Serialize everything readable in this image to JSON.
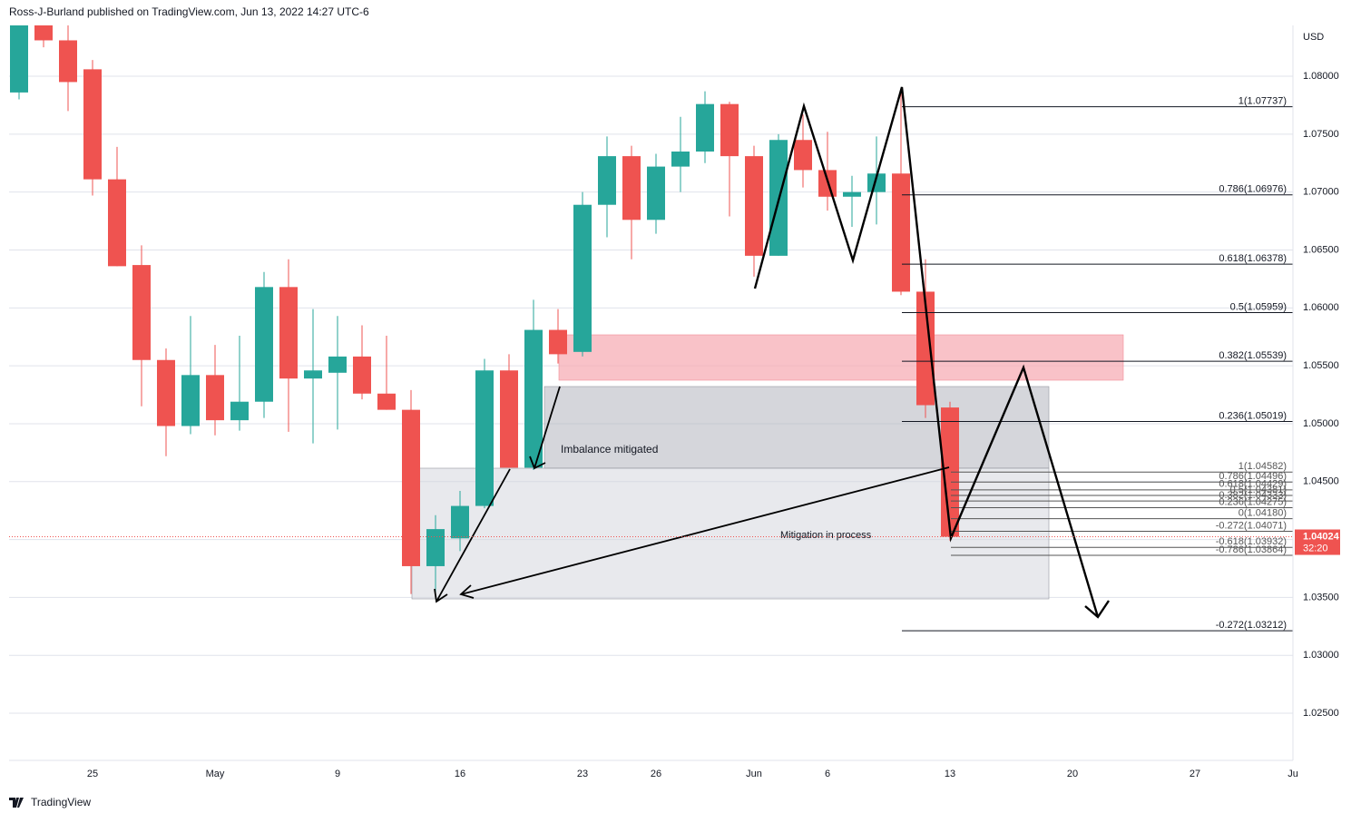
{
  "header": "Ross-J-Burland published on TradingView.com, Jun 13, 2022 14:27 UTC-6",
  "footer": "TradingView",
  "chart_data": {
    "type": "candlestick",
    "currency": "USD",
    "categories": [
      null,
      null,
      null,
      "25",
      null,
      null,
      null,
      null,
      "May",
      null,
      null,
      null,
      null,
      "9",
      null,
      null,
      null,
      null,
      "16",
      null,
      null,
      null,
      null,
      "23",
      null,
      null,
      "26",
      null,
      null,
      null,
      "Jun",
      null,
      null,
      "6",
      null,
      null,
      null,
      null,
      "13",
      null,
      null,
      null,
      null,
      "20",
      null,
      null,
      null,
      null,
      "27",
      null,
      null,
      null,
      "Ju"
    ],
    "open": [
      1.0786,
      1.0845,
      1.0831,
      1.0806,
      1.0711,
      1.0637,
      1.0555,
      1.0498,
      1.0542,
      1.0503,
      1.0519,
      1.0618,
      1.0539,
      1.0544,
      1.0558,
      1.0526,
      1.0512,
      1.0377,
      1.0401,
      1.0429,
      1.0546,
      1.0462,
      1.0581,
      1.0562,
      1.0689,
      1.0731,
      1.0676,
      1.0722,
      1.0735,
      1.0776,
      1.0731,
      1.0645,
      1.0745,
      1.0719,
      1.0696,
      1.07,
      1.0716,
      1.0614,
      1.0514,
      null,
      null,
      null,
      null,
      null,
      null,
      null,
      null,
      null,
      null,
      null,
      null,
      null,
      null
    ],
    "high": [
      1.085,
      1.0853,
      1.0845,
      1.0814,
      1.0739,
      1.0654,
      1.0565,
      1.0593,
      1.0568,
      1.0576,
      1.0631,
      1.0642,
      1.0599,
      1.0593,
      1.0585,
      1.0576,
      1.0529,
      1.0421,
      1.0442,
      1.0556,
      1.056,
      1.0607,
      1.0599,
      1.07,
      1.0748,
      1.074,
      1.0733,
      1.0765,
      1.0787,
      1.0778,
      1.074,
      1.075,
      1.0767,
      1.0752,
      1.0714,
      1.0748,
      1.0787,
      1.0642,
      1.0519,
      null,
      null,
      null,
      null,
      null,
      null,
      null,
      null,
      null,
      null,
      null,
      null,
      null,
      null
    ],
    "low": [
      1.078,
      1.0825,
      1.077,
      1.0697,
      1.0636,
      1.0515,
      1.0472,
      1.0491,
      1.049,
      1.0494,
      1.0505,
      1.0493,
      1.0483,
      1.0495,
      1.0521,
      1.0512,
      1.0353,
      1.0349,
      1.039,
      1.0427,
      1.0462,
      1.046,
      1.0552,
      1.0558,
      1.0661,
      1.0642,
      1.0664,
      1.07,
      1.0725,
      1.0679,
      1.0627,
      1.0645,
      1.0704,
      1.0684,
      1.067,
      1.0672,
      1.0611,
      1.0505,
      1.0399,
      null,
      null,
      null,
      null,
      null,
      null,
      null,
      null,
      null,
      null,
      null,
      null,
      null,
      null
    ],
    "close": [
      1.0845,
      1.0831,
      1.0795,
      1.0711,
      1.0636,
      1.0555,
      1.0498,
      1.0542,
      1.0503,
      1.0519,
      1.0618,
      1.0539,
      1.0546,
      1.0558,
      1.0526,
      1.0512,
      1.0377,
      1.0409,
      1.0429,
      1.0546,
      1.0462,
      1.0581,
      1.056,
      1.0689,
      1.0731,
      1.0676,
      1.0722,
      1.0735,
      1.0776,
      1.0731,
      1.0645,
      1.0745,
      1.0719,
      1.0696,
      1.07,
      1.0716,
      1.0614,
      1.0516,
      1.04024,
      null,
      null,
      null,
      null,
      null,
      null,
      null,
      null,
      null,
      null,
      null,
      null,
      null,
      null
    ],
    "up_color": "#26a69a",
    "down_color": "#ef5350",
    "ylim": [
      1.02093,
      1.08439
    ],
    "yticks": [
      {
        "value": 1.025,
        "label": "1.02500"
      },
      {
        "value": 1.03,
        "label": "1.03000"
      },
      {
        "value": 1.035,
        "label": "1.03500"
      },
      {
        "value": 1.04,
        "label": "1.04000"
      },
      {
        "value": 1.045,
        "label": "1.04500"
      },
      {
        "value": 1.05,
        "label": "1.05000"
      },
      {
        "value": 1.055,
        "label": "1.05500"
      },
      {
        "value": 1.06,
        "label": "1.06000"
      },
      {
        "value": 1.065,
        "label": "1.06500"
      },
      {
        "value": 1.07,
        "label": "1.07000"
      },
      {
        "value": 1.075,
        "label": "1.07500"
      },
      {
        "value": 1.08,
        "label": "1.08000"
      }
    ],
    "grid": true,
    "last_price": 1.04024,
    "countdown": "32:20",
    "fib_major": [
      {
        "value": 1.07737,
        "label": "1(1.07737)"
      },
      {
        "value": 1.06976,
        "label": "0.786(1.06976)"
      },
      {
        "value": 1.06378,
        "label": "0.618(1.06378)"
      },
      {
        "value": 1.05959,
        "label": "0.5(1.05959)"
      },
      {
        "value": 1.05539,
        "label": "0.382(1.05539)"
      },
      {
        "value": 1.05019,
        "label": "0.236(1.05019)"
      },
      {
        "value": 1.03212,
        "label": "-0.272(1.03212)"
      }
    ],
    "fib_minor": [
      {
        "value": 1.04582,
        "label": "1(1.04582)"
      },
      {
        "value": 1.04496,
        "label": "0.786(1.04496)"
      },
      {
        "value": 1.04429,
        "label": "0.618(1.04429)"
      },
      {
        "value": 1.04381,
        "label": "0.5(1.04381)"
      },
      {
        "value": 1.04333,
        "label": "0.382(1.04333)"
      },
      {
        "value": 1.04275,
        "label": "0.236(1.04275)"
      },
      {
        "value": 1.0418,
        "label": "0(1.04180)"
      },
      {
        "value": 1.04071,
        "label": "-0.272(1.04071)"
      },
      {
        "value": 1.03932,
        "label": "-0.618(1.03932)"
      },
      {
        "value": 1.03864,
        "label": "-0.786(1.03864)"
      }
    ],
    "annotations": [
      "Imbalance mitigated",
      "Mitigation in process"
    ]
  }
}
